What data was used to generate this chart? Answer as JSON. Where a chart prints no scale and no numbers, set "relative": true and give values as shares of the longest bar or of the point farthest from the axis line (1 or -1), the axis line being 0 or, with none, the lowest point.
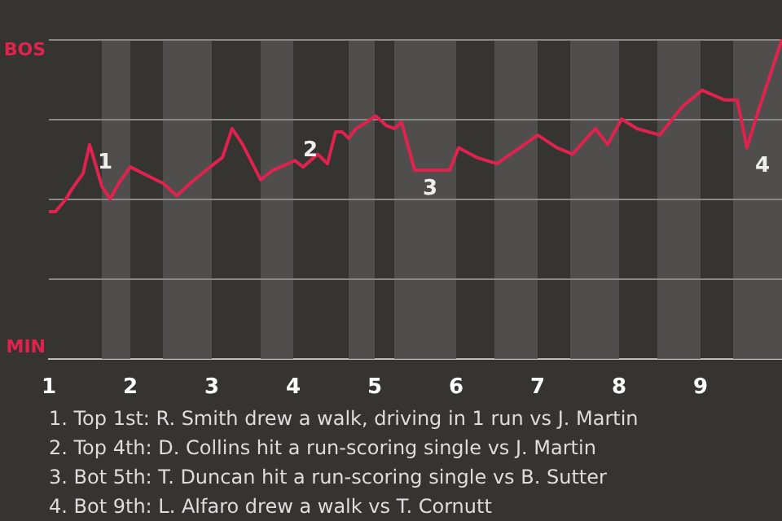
{
  "chart_data": {
    "type": "line",
    "relative": true,
    "x": [
      1,
      1.08,
      1.21,
      1.28,
      1.42,
      1.5,
      1.57,
      1.65,
      1.75,
      1.86,
      2,
      2.31,
      2.4,
      2.57,
      2.74,
      2.98,
      3.13,
      3.25,
      3.38,
      3.6,
      3.75,
      4.02,
      4.12,
      4.3,
      4.42,
      4.52,
      4.6,
      4.68,
      4.77,
      4.9,
      5.01,
      5.14,
      5.24,
      5.33,
      5.49,
      5.92,
      6.03,
      6.25,
      6.5,
      6.78,
      7,
      7.24,
      7.43,
      7.6,
      7.71,
      7.86,
      8.03,
      8.22,
      8.5,
      8.78,
      9.02,
      9.29,
      9.45,
      9.57,
      9.69,
      10
    ],
    "series": [
      {
        "color": "#e0234e",
        "values": [
          0.46,
          0.46,
          0.5,
          0.53,
          0.58,
          0.67,
          0.61,
          0.54,
          0.5,
          0.55,
          0.6,
          0.56,
          0.55,
          0.51,
          0.55,
          0.6,
          0.63,
          0.72,
          0.67,
          0.56,
          0.59,
          0.62,
          0.6,
          0.64,
          0.61,
          0.71,
          0.71,
          0.69,
          0.72,
          0.74,
          0.76,
          0.73,
          0.72,
          0.74,
          0.59,
          0.59,
          0.66,
          0.63,
          0.61,
          0.66,
          0.7,
          0.66,
          0.64,
          0.69,
          0.72,
          0.67,
          0.75,
          0.72,
          0.7,
          0.79,
          0.84,
          0.81,
          0.81,
          0.66,
          0.76,
          1
        ]
      }
    ],
    "xlim": [
      1,
      10
    ],
    "xticks": [
      1,
      2,
      3,
      4,
      5,
      6,
      7,
      8,
      9
    ],
    "legend": false,
    "marker": "none",
    "line_style": "solid",
    "ref_lines": [
      {
        "axis": "y",
        "value": 0.25,
        "color": "#8a8886"
      },
      {
        "axis": "y",
        "value": 0.5,
        "color": "#8a8886"
      },
      {
        "axis": "y",
        "value": 0.75,
        "color": "#8a8886"
      },
      {
        "axis": "y",
        "value": 1,
        "color": "#8a8886"
      }
    ],
    "bands": [
      {
        "axis": "x",
        "from": 1.65,
        "to": 2,
        "color": "#4f4e4c"
      },
      {
        "axis": "x",
        "from": 2.4,
        "to": 3,
        "color": "#4f4e4c"
      },
      {
        "axis": "x",
        "from": 3.6,
        "to": 4,
        "color": "#4f4e4c"
      },
      {
        "axis": "x",
        "from": 4.68,
        "to": 5,
        "color": "#4f4e4c"
      },
      {
        "axis": "x",
        "from": 5.24,
        "to": 6,
        "color": "#4f4e4c"
      },
      {
        "axis": "x",
        "from": 6.47,
        "to": 7,
        "color": "#4f4e4c"
      },
      {
        "axis": "x",
        "from": 7.4,
        "to": 8,
        "color": "#4f4e4c"
      },
      {
        "axis": "x",
        "from": 8.47,
        "to": 9,
        "color": "#4f4e4c"
      },
      {
        "axis": "x",
        "from": 9.4,
        "to": 10,
        "color": "#4f4e4c"
      }
    ],
    "annotations": [
      "BOS",
      "MIN",
      {
        "text": "1",
        "x": 1.5,
        "y": 0.67
      },
      {
        "text": "2",
        "x": 4.02,
        "y": 0.71
      },
      {
        "text": "3",
        "x": 5.49,
        "y": 0.59
      },
      {
        "text": "4",
        "x": 9.57,
        "y": 0.66
      },
      "1. Top 1st: R. Smith drew a walk, driving in 1 run vs J. Martin",
      "2. Top 4th: D. Collins hit a run-scoring single vs J. Martin",
      "3. Bot 5th: T. Duncan hit a run-scoring single vs B. Sutter",
      "4. Bot 9th: L. Alfaro drew a walk vs T. Cornutt"
    ]
  }
}
